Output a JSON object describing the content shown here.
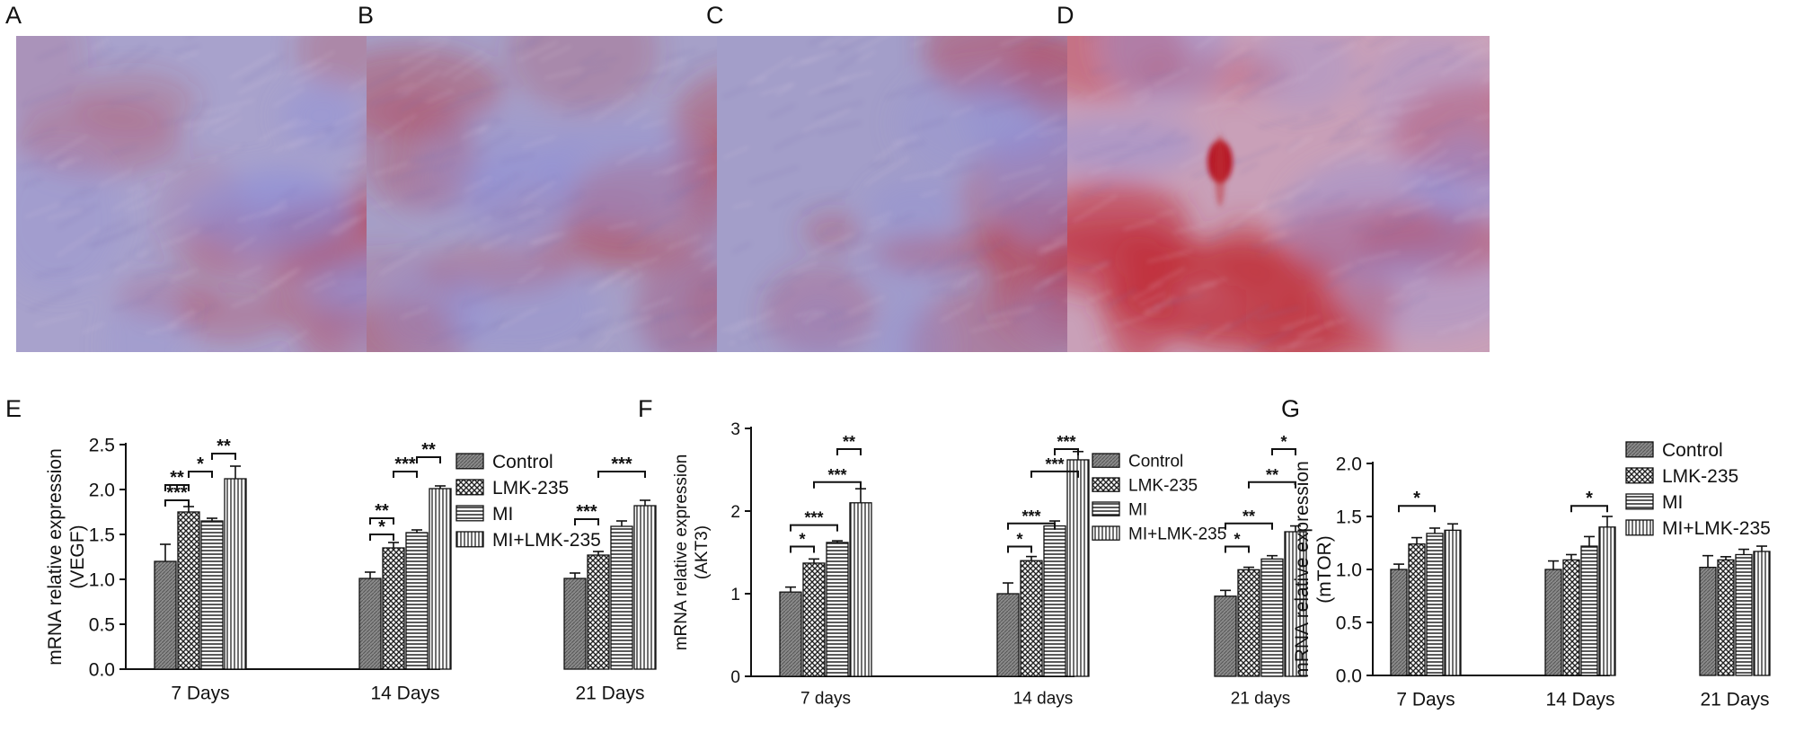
{
  "micrographs": [
    {
      "label": "A",
      "base": "#a8a2cc",
      "stain": "#b8303a",
      "intensity": 0.45,
      "seed": 11
    },
    {
      "label": "B",
      "base": "#a6a0c8",
      "stain": "#b5323c",
      "intensity": 0.5,
      "seed": 23
    },
    {
      "label": "C",
      "base": "#a39ec9",
      "stain": "#bc2f3a",
      "intensity": 0.6,
      "seed": 37
    },
    {
      "label": "D",
      "base": "#c9a0b8",
      "stain": "#c02a34",
      "intensity": 0.75,
      "seed": 51
    }
  ],
  "chart_data": [
    {
      "label": "E",
      "type": "bar",
      "ylabel_line1": "mRNA relative expression",
      "ylabel_line2": "(VEGF)",
      "categories": [
        "7 Days",
        "14 Days",
        "21 Days"
      ],
      "ylim": [
        0,
        2.5
      ],
      "yticks": [
        "0.0",
        "0.5",
        "1.0",
        "1.5",
        "2.0",
        "2.5"
      ],
      "series": [
        {
          "name": "Control",
          "values": [
            1.2,
            1.01,
            1.01
          ],
          "errors": [
            0.19,
            0.07,
            0.06
          ]
        },
        {
          "name": "LMK-235",
          "values": [
            1.75,
            1.35,
            1.27
          ],
          "errors": [
            0.06,
            0.06,
            0.04
          ]
        },
        {
          "name": "MI",
          "values": [
            1.65,
            1.52,
            1.59
          ],
          "errors": [
            0.03,
            0.03,
            0.06
          ]
        },
        {
          "name": "MI+LMK-235",
          "values": [
            2.12,
            2.01,
            1.82
          ],
          "errors": [
            0.14,
            0.03,
            0.06
          ]
        }
      ],
      "significance": [
        {
          "group": 0,
          "from": 0,
          "to": 1,
          "level": 2.05,
          "label": "**"
        },
        {
          "group": 0,
          "from": 0,
          "to": 1,
          "level": 1.88,
          "label": "***"
        },
        {
          "group": 0,
          "from": 1,
          "to": 2,
          "level": 2.2,
          "label": "*"
        },
        {
          "group": 0,
          "from": 2,
          "to": 3,
          "level": 2.4,
          "label": "**"
        },
        {
          "group": 1,
          "from": 0,
          "to": 1,
          "level": 1.5,
          "label": "*"
        },
        {
          "group": 1,
          "from": 0,
          "to": 1,
          "level": 1.68,
          "label": "**"
        },
        {
          "group": 1,
          "from": 1,
          "to": 2,
          "level": 2.2,
          "label": "***"
        },
        {
          "group": 1,
          "from": 2,
          "to": 3,
          "level": 2.36,
          "label": "**"
        },
        {
          "group": 2,
          "from": 0,
          "to": 1,
          "level": 1.67,
          "label": "***"
        },
        {
          "group": 2,
          "from": 1,
          "to": 3,
          "level": 2.2,
          "label": "***"
        }
      ]
    },
    {
      "label": "F",
      "type": "bar",
      "ylabel_line1": "mRNA relative expression",
      "ylabel_line2": "(AKT3)",
      "categories": [
        "7 days",
        "14 days",
        "21 days"
      ],
      "ylim": [
        0,
        3
      ],
      "yticks": [
        "0",
        "1",
        "2",
        "3"
      ],
      "series": [
        {
          "name": "Control",
          "values": [
            1.02,
            1.0,
            0.97
          ],
          "errors": [
            0.06,
            0.13,
            0.07
          ]
        },
        {
          "name": "LMK-235",
          "values": [
            1.37,
            1.4,
            1.29
          ],
          "errors": [
            0.05,
            0.05,
            0.03
          ]
        },
        {
          "name": "MI",
          "values": [
            1.62,
            1.82,
            1.42
          ],
          "errors": [
            0.02,
            0.06,
            0.04
          ]
        },
        {
          "name": "MI+LMK-235",
          "values": [
            2.1,
            2.62,
            1.75
          ],
          "errors": [
            0.17,
            0.1,
            0.07
          ]
        }
      ],
      "significance": [
        {
          "group": 0,
          "from": 0,
          "to": 1,
          "level": 1.57,
          "label": "*"
        },
        {
          "group": 0,
          "from": 0,
          "to": 2,
          "level": 1.83,
          "label": "***"
        },
        {
          "group": 0,
          "from": 1,
          "to": 3,
          "level": 2.35,
          "label": "***"
        },
        {
          "group": 0,
          "from": 2,
          "to": 3,
          "level": 2.75,
          "label": "**"
        },
        {
          "group": 1,
          "from": 0,
          "to": 1,
          "level": 1.57,
          "label": "*"
        },
        {
          "group": 1,
          "from": 0,
          "to": 2,
          "level": 1.85,
          "label": "***"
        },
        {
          "group": 1,
          "from": 1,
          "to": 3,
          "level": 2.48,
          "label": "***"
        },
        {
          "group": 1,
          "from": 2,
          "to": 3,
          "level": 2.75,
          "label": "***"
        },
        {
          "group": 2,
          "from": 0,
          "to": 1,
          "level": 1.57,
          "label": "*"
        },
        {
          "group": 2,
          "from": 0,
          "to": 2,
          "level": 1.85,
          "label": "**"
        },
        {
          "group": 2,
          "from": 1,
          "to": 3,
          "level": 2.35,
          "label": "**"
        },
        {
          "group": 2,
          "from": 2,
          "to": 3,
          "level": 2.75,
          "label": "*"
        }
      ]
    },
    {
      "label": "G",
      "type": "bar",
      "ylabel_line1": "mRNA relative expression",
      "ylabel_line2": "(mTOR)",
      "categories": [
        "7 Days",
        "14 Days",
        "21 Days"
      ],
      "ylim": [
        0,
        2
      ],
      "yticks": [
        "0.0",
        "0.5",
        "1.0",
        "1.5",
        "2.0"
      ],
      "series": [
        {
          "name": "Control",
          "values": [
            1.0,
            1.0,
            1.02
          ],
          "errors": [
            0.05,
            0.08,
            0.11
          ]
        },
        {
          "name": "LMK-235",
          "values": [
            1.24,
            1.09,
            1.09
          ],
          "errors": [
            0.06,
            0.05,
            0.03
          ]
        },
        {
          "name": "MI",
          "values": [
            1.34,
            1.22,
            1.14
          ],
          "errors": [
            0.05,
            0.09,
            0.05
          ]
        },
        {
          "name": "MI+LMK-235",
          "values": [
            1.37,
            1.4,
            1.17
          ],
          "errors": [
            0.06,
            0.1,
            0.05
          ]
        }
      ],
      "significance": [
        {
          "group": 0,
          "from": 0,
          "to": 2,
          "level": 1.6,
          "label": "*"
        },
        {
          "group": 1,
          "from": 1,
          "to": 3,
          "level": 1.6,
          "label": "*"
        }
      ]
    }
  ]
}
